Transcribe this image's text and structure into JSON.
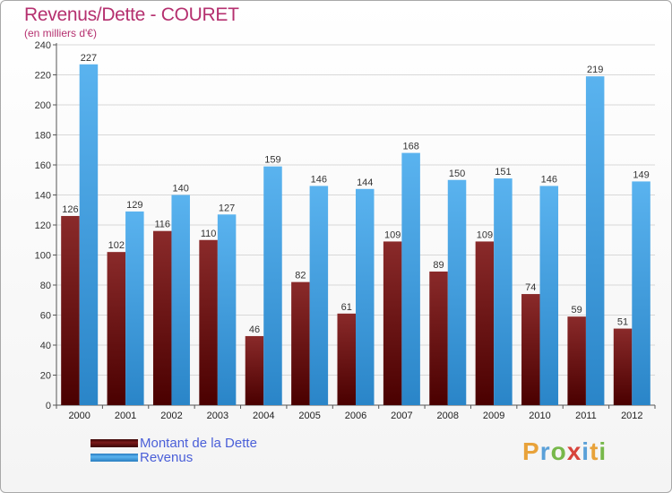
{
  "title": "Revenus/Dette - COURET",
  "subtitle": "(en milliers d'€)",
  "logo": {
    "letters": [
      {
        "ch": "P",
        "color": "#e8a23a"
      },
      {
        "ch": "r",
        "color": "#5aa0d8"
      },
      {
        "ch": "o",
        "color": "#77b84a"
      },
      {
        "ch": "x",
        "color": "#d7433b"
      },
      {
        "ch": "i",
        "color": "#5aa0d8"
      },
      {
        "ch": "t",
        "color": "#e8a23a"
      },
      {
        "ch": "i",
        "color": "#77b84a"
      }
    ]
  },
  "colors": {
    "debt": "#7a1a1a",
    "revenue": "#4aa3e0",
    "legend_text": "#4a5fd8",
    "title": "#b5306f"
  },
  "chart_data": {
    "type": "bar",
    "categories": [
      "2000",
      "2001",
      "2002",
      "2003",
      "2004",
      "2005",
      "2006",
      "2007",
      "2008",
      "2009",
      "2010",
      "2011",
      "2012"
    ],
    "series": [
      {
        "name": "Montant de la Dette",
        "values": [
          126,
          102,
          116,
          110,
          46,
          82,
          61,
          109,
          89,
          109,
          74,
          59,
          51
        ]
      },
      {
        "name": "Revenus",
        "values": [
          227,
          129,
          140,
          127,
          159,
          146,
          144,
          168,
          150,
          151,
          146,
          219,
          149
        ]
      }
    ],
    "ylim": [
      0,
      240
    ],
    "yticks": [
      0,
      20,
      40,
      60,
      80,
      100,
      120,
      140,
      160,
      180,
      200,
      220,
      240
    ],
    "grid": true,
    "legend": "bottom-left"
  }
}
